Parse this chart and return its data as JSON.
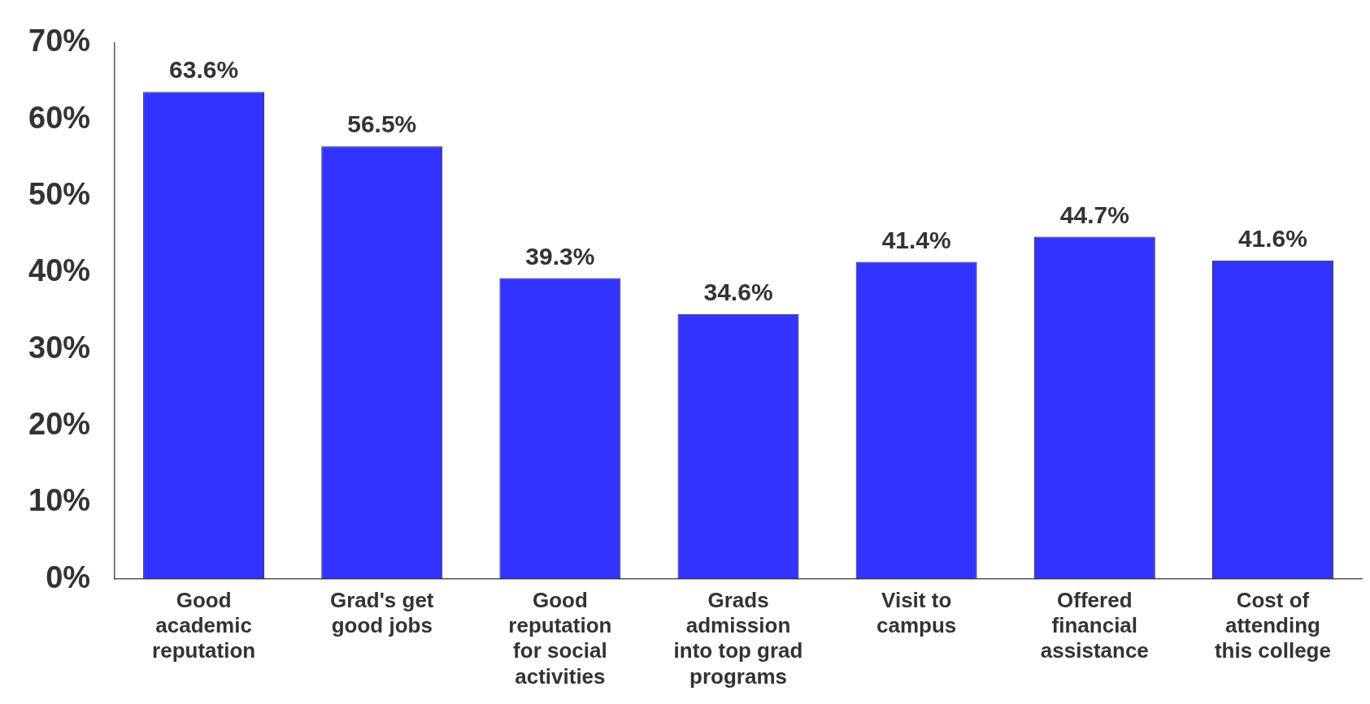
{
  "chart_data": {
    "type": "bar",
    "categories": [
      "Good academic reputation",
      "Grad's get good jobs",
      "Good reputation for social activities",
      "Grads admission into top grad programs",
      "Visit to campus",
      "Offered financial assistance",
      "Cost of attending this college"
    ],
    "values": [
      63.6,
      56.5,
      39.3,
      34.6,
      41.4,
      44.7,
      41.6
    ],
    "value_labels": [
      "63.6%",
      "56.5%",
      "39.3%",
      "34.6%",
      "41.4%",
      "44.7%",
      "41.6%"
    ],
    "color": "#3333ff",
    "ylim": [
      0,
      70
    ],
    "yticks": [
      {
        "value": 0,
        "label": "0%"
      },
      {
        "value": 10,
        "label": "10%"
      },
      {
        "value": 20,
        "label": "20%"
      },
      {
        "value": 30,
        "label": "30%"
      },
      {
        "value": 40,
        "label": "40%"
      },
      {
        "value": 50,
        "label": "50%"
      },
      {
        "value": 60,
        "label": "60%"
      },
      {
        "value": 70,
        "label": "70%"
      }
    ],
    "grid": false,
    "legend": false
  }
}
